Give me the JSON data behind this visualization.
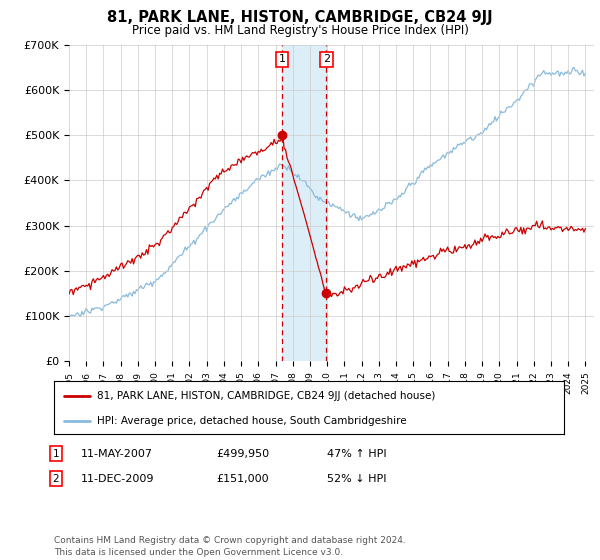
{
  "title": "81, PARK LANE, HISTON, CAMBRIDGE, CB24 9JJ",
  "subtitle": "Price paid vs. HM Land Registry's House Price Index (HPI)",
  "ylim": [
    0,
    700000
  ],
  "yticks": [
    0,
    100000,
    200000,
    300000,
    400000,
    500000,
    600000,
    700000
  ],
  "ytick_labels": [
    "£0",
    "£100K",
    "£200K",
    "£300K",
    "£400K",
    "£500K",
    "£600K",
    "£700K"
  ],
  "xlim_start": 1995,
  "xlim_end": 2025.5,
  "transaction1_date": 2007.37,
  "transaction1_price": 499950,
  "transaction2_date": 2009.95,
  "transaction2_price": 151000,
  "sale_color": "#cc0000",
  "hpi_color": "#88bbdd",
  "highlight_color": "#dceef8",
  "dashed_color": "#cc0000",
  "grid_color": "#cccccc",
  "legend_label_sale": "81, PARK LANE, HISTON, CAMBRIDGE, CB24 9JJ (detached house)",
  "legend_label_hpi": "HPI: Average price, detached house, South Cambridgeshire",
  "annotation1_date": "11-MAY-2007",
  "annotation1_price": "£499,950",
  "annotation1_hpi": "47% ↑ HPI",
  "annotation2_date": "11-DEC-2009",
  "annotation2_price": "£151,000",
  "annotation2_hpi": "52% ↓ HPI",
  "footer": "Contains HM Land Registry data © Crown copyright and database right 2024.\nThis data is licensed under the Open Government Licence v3.0."
}
